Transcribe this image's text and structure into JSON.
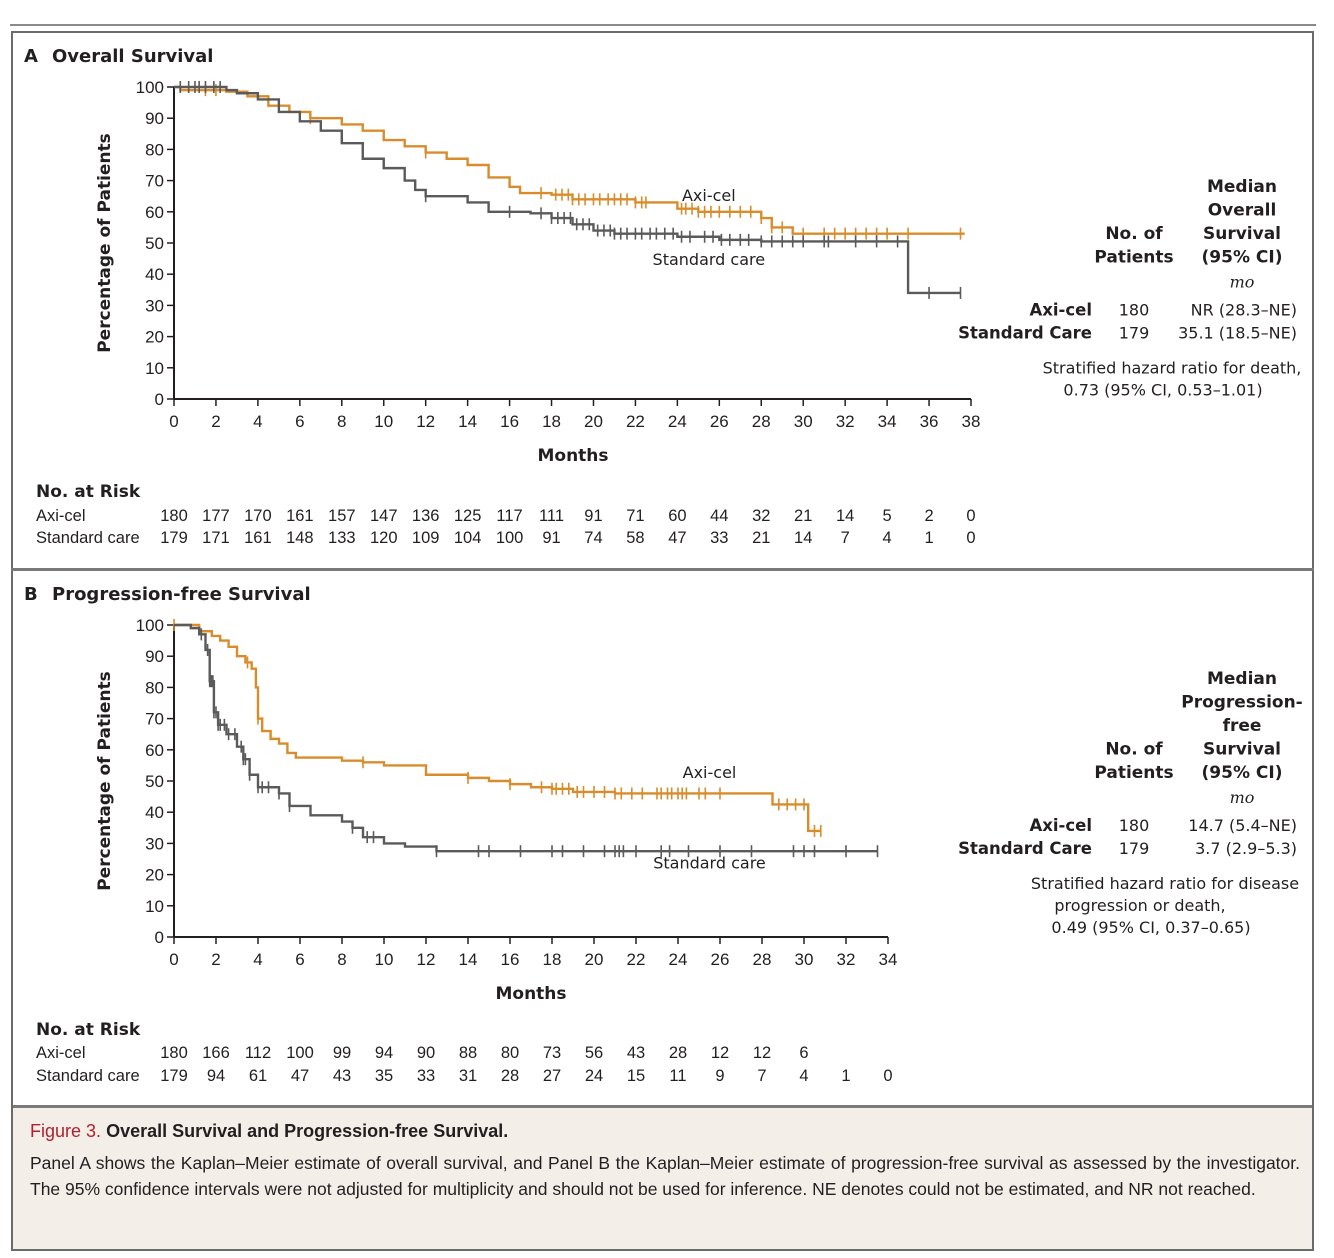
{
  "colors": {
    "axi_cel": "#d98c2b",
    "standard_care": "#5a5a5a",
    "figure_number": "#b21f2d",
    "caption_bg": "#f3eee8"
  },
  "caption": {
    "figure_number": "Figure 3.",
    "title": "Overall Survival and Progression-free Survival.",
    "body": "Panel A shows the Kaplan–Meier estimate of overall survival, and Panel B the Kaplan–Meier estimate of progression-free survival as assessed by the investigator. The 95% confidence intervals were not adjusted for multiplicity and should not be used for inference. NE denotes could not be estimated, and NR not reached."
  },
  "chart_data": [
    {
      "type": "line",
      "subtype": "kaplan-meier",
      "panel": "A",
      "title": "Overall Survival",
      "xlabel": "Months",
      "ylabel": "Percentage of Patients",
      "xlim": [
        0,
        38
      ],
      "ylim": [
        0,
        100
      ],
      "xticks": [
        0,
        2,
        4,
        6,
        8,
        10,
        12,
        14,
        16,
        18,
        20,
        22,
        24,
        26,
        28,
        30,
        32,
        34,
        36,
        38
      ],
      "yticks": [
        0,
        10,
        20,
        30,
        40,
        50,
        60,
        70,
        80,
        90,
        100
      ],
      "grid": false,
      "series": [
        {
          "name": "Axi-cel",
          "color": "#d98c2b",
          "label_anchor": [
            25.5,
            63.5
          ],
          "steps": [
            [
              0,
              100
            ],
            [
              0.3,
              99
            ],
            [
              2.5,
              98.5
            ],
            [
              3.5,
              97
            ],
            [
              4.5,
              94
            ],
            [
              5.5,
              92
            ],
            [
              6.5,
              90
            ],
            [
              8,
              88
            ],
            [
              9,
              86
            ],
            [
              10,
              83
            ],
            [
              11,
              81
            ],
            [
              12,
              79
            ],
            [
              13,
              77
            ],
            [
              14,
              75
            ],
            [
              15,
              71
            ],
            [
              16,
              68
            ],
            [
              16.5,
              66
            ],
            [
              18,
              65.5
            ],
            [
              19,
              64
            ],
            [
              22,
              63
            ],
            [
              24,
              61
            ],
            [
              25,
              60
            ],
            [
              28,
              58
            ],
            [
              28.5,
              55
            ],
            [
              29.5,
              53
            ],
            [
              37.7,
              53
            ]
          ],
          "censors": [
            1.5,
            2,
            6.5,
            12,
            17.5,
            18.2,
            18.5,
            18.8,
            19,
            19.3,
            19.6,
            20,
            20.3,
            20.7,
            21,
            21.3,
            21.6,
            22,
            22.3,
            22.5,
            24.2,
            24.4,
            24.7,
            25,
            25.3,
            25.6,
            26,
            26.5,
            27,
            27.5,
            28,
            28.5,
            29,
            30,
            31,
            31.5,
            32,
            32.5,
            33,
            33.5,
            34,
            35,
            37.5
          ]
        },
        {
          "name": "Standard care",
          "color": "#5a5a5a",
          "label_anchor": [
            25.5,
            43
          ],
          "steps": [
            [
              0,
              100
            ],
            [
              2.5,
              99
            ],
            [
              3,
              98
            ],
            [
              4,
              96
            ],
            [
              5,
              92
            ],
            [
              6,
              89
            ],
            [
              7,
              86
            ],
            [
              8,
              82
            ],
            [
              9,
              77
            ],
            [
              10,
              74
            ],
            [
              11,
              70
            ],
            [
              11.5,
              67
            ],
            [
              12,
              65
            ],
            [
              14,
              63
            ],
            [
              15,
              60
            ],
            [
              17,
              59.5
            ],
            [
              18,
              58
            ],
            [
              19,
              56
            ],
            [
              20,
              54
            ],
            [
              21,
              53
            ],
            [
              24,
              52
            ],
            [
              26,
              51
            ],
            [
              28,
              50.5
            ],
            [
              35,
              50.5
            ],
            [
              35,
              34
            ],
            [
              37.5,
              34
            ]
          ],
          "censors": [
            0.3,
            0.7,
            1,
            1.2,
            1.5,
            1.9,
            2.2,
            12,
            16,
            17.5,
            18,
            18.3,
            18.6,
            18.9,
            19.2,
            19.5,
            19.8,
            20.2,
            20.5,
            20.8,
            21,
            21.3,
            21.6,
            22,
            22.3,
            22.7,
            23,
            23.4,
            23.8,
            24.2,
            24.6,
            25.3,
            25.7,
            26.1,
            26.5,
            27,
            27.4,
            28,
            28.5,
            29,
            29.5,
            30,
            31,
            31.2,
            32.5,
            33.5,
            34.5,
            36,
            37.5
          ]
        }
      ],
      "at_risk": {
        "heading": "No. at Risk",
        "times": [
          0,
          2,
          4,
          6,
          8,
          10,
          12,
          14,
          16,
          18,
          20,
          22,
          24,
          26,
          28,
          30,
          32,
          34,
          36,
          38
        ],
        "rows": [
          {
            "label": "Axi-cel",
            "values": [
              180,
              177,
              170,
              161,
              157,
              147,
              136,
              125,
              117,
              111,
              91,
              71,
              60,
              44,
              32,
              21,
              14,
              5,
              2,
              0
            ]
          },
          {
            "label": "Standard care",
            "values": [
              179,
              171,
              161,
              148,
              133,
              120,
              109,
              104,
              100,
              91,
              74,
              58,
              47,
              33,
              21,
              14,
              7,
              4,
              1,
              0
            ]
          }
        ]
      },
      "summary": {
        "header_patients": [
          "No. of",
          "Patients"
        ],
        "header_median": [
          "Median",
          "Overall",
          "Survival",
          "(95% CI)"
        ],
        "unit": "mo",
        "rows": [
          {
            "group": "Axi-cel",
            "n": "180",
            "median": "NR (28.3–NE)"
          },
          {
            "group": "Standard Care",
            "n": "179",
            "median": "35.1 (18.5–NE)"
          }
        ],
        "hazard_ratio_lines": [
          "Stratified hazard ratio for death,",
          "0.73 (95% CI, 0.53–1.01)"
        ]
      }
    },
    {
      "type": "line",
      "subtype": "kaplan-meier",
      "panel": "B",
      "title": "Progression-free Survival",
      "xlabel": "Months",
      "ylabel": "Percentage of Patients",
      "xlim": [
        0,
        34
      ],
      "ylim": [
        0,
        100
      ],
      "xticks": [
        0,
        2,
        4,
        6,
        8,
        10,
        12,
        14,
        16,
        18,
        20,
        22,
        24,
        26,
        28,
        30,
        32,
        34
      ],
      "yticks": [
        0,
        10,
        20,
        30,
        40,
        50,
        60,
        70,
        80,
        90,
        100
      ],
      "grid": false,
      "series": [
        {
          "name": "Axi-cel",
          "color": "#d98c2b",
          "label_anchor": [
            25.5,
            51
          ],
          "steps": [
            [
              0,
              100
            ],
            [
              1.2,
              98
            ],
            [
              1.8,
              96.5
            ],
            [
              2.2,
              95
            ],
            [
              2.6,
              93
            ],
            [
              3,
              90
            ],
            [
              3.4,
              88
            ],
            [
              3.7,
              86
            ],
            [
              3.9,
              80
            ],
            [
              4,
              70
            ],
            [
              4.2,
              66
            ],
            [
              4.6,
              63.5
            ],
            [
              5,
              62
            ],
            [
              5.4,
              59
            ],
            [
              5.8,
              57.5
            ],
            [
              8,
              56.5
            ],
            [
              9,
              56
            ],
            [
              10,
              55
            ],
            [
              12,
              52
            ],
            [
              14,
              51
            ],
            [
              15,
              50
            ],
            [
              16,
              49
            ],
            [
              17,
              48
            ],
            [
              18,
              47.5
            ],
            [
              19,
              46.5
            ],
            [
              21,
              46
            ],
            [
              28.5,
              46
            ],
            [
              28.5,
              42.5
            ],
            [
              30.2,
              42.5
            ],
            [
              30.2,
              34
            ],
            [
              30.8,
              34
            ]
          ],
          "censors": [
            0,
            3.5,
            4,
            9,
            14,
            16,
            17.5,
            18,
            18.2,
            18.5,
            18.8,
            19.2,
            19.5,
            20,
            20.5,
            21,
            21.3,
            21.8,
            22.3,
            23,
            23.2,
            23.5,
            23.7,
            24,
            24.2,
            24.4,
            25,
            25.3,
            26,
            28.8,
            29.2,
            29.6,
            30,
            30.5,
            30.8
          ]
        },
        {
          "name": "Standard care",
          "color": "#5a5a5a",
          "label_anchor": [
            25.5,
            22
          ],
          "steps": [
            [
              0,
              100
            ],
            [
              0.8,
              99
            ],
            [
              1.2,
              97
            ],
            [
              1.5,
              92
            ],
            [
              1.7,
              82
            ],
            [
              1.9,
              72
            ],
            [
              2.1,
              68
            ],
            [
              2.5,
              65
            ],
            [
              3,
              61
            ],
            [
              3.3,
              57
            ],
            [
              3.6,
              52
            ],
            [
              4,
              48
            ],
            [
              5,
              46
            ],
            [
              5.5,
              42
            ],
            [
              6.5,
              39
            ],
            [
              8,
              37
            ],
            [
              8.5,
              35
            ],
            [
              9,
              32
            ],
            [
              10,
              30
            ],
            [
              11,
              29
            ],
            [
              12.5,
              27.5
            ],
            [
              33.5,
              27.5
            ]
          ],
          "censors": [
            1.3,
            1.6,
            1.7,
            1.75,
            1.8,
            1.85,
            1.9,
            2,
            2.1,
            2.2,
            2.4,
            2.6,
            2.9,
            3.2,
            3.3,
            3.4,
            3.6,
            4,
            4.2,
            4.5,
            5,
            5.5,
            8.5,
            9.2,
            9.5,
            12.5,
            14.5,
            15,
            16.5,
            18,
            18.5,
            19.5,
            20.5,
            21,
            21.2,
            21.4,
            22,
            23.2,
            23.6,
            24.5,
            26,
            27.5,
            29.5,
            30,
            30.5,
            32,
            33.5
          ]
        }
      ],
      "at_risk": {
        "heading": "No. at Risk",
        "times": [
          0,
          2,
          4,
          6,
          8,
          10,
          12,
          14,
          16,
          18,
          20,
          22,
          24,
          26,
          28,
          30,
          32,
          34
        ],
        "rows": [
          {
            "label": "Axi-cel",
            "values": [
              180,
              166,
              112,
              100,
              99,
              94,
              90,
              88,
              80,
              73,
              56,
              43,
              28,
              12,
              12,
              6,
              null,
              null
            ]
          },
          {
            "label": "Standard care",
            "values": [
              179,
              94,
              61,
              47,
              43,
              35,
              33,
              31,
              28,
              27,
              24,
              15,
              11,
              9,
              7,
              4,
              1,
              0
            ]
          }
        ]
      },
      "summary": {
        "header_patients": [
          "No. of",
          "Patients"
        ],
        "header_median": [
          "Median",
          "Progression-",
          "free",
          "Survival",
          "(95% CI)"
        ],
        "unit": "mo",
        "rows": [
          {
            "group": "Axi-cel",
            "n": "180",
            "median": "14.7 (5.4–NE)"
          },
          {
            "group": "Standard Care",
            "n": "179",
            "median": "3.7 (2.9–5.3)"
          }
        ],
        "hazard_ratio_lines": [
          "Stratified hazard ratio for disease",
          "progression or death,",
          "0.49 (95% CI, 0.37–0.65)"
        ]
      }
    }
  ]
}
